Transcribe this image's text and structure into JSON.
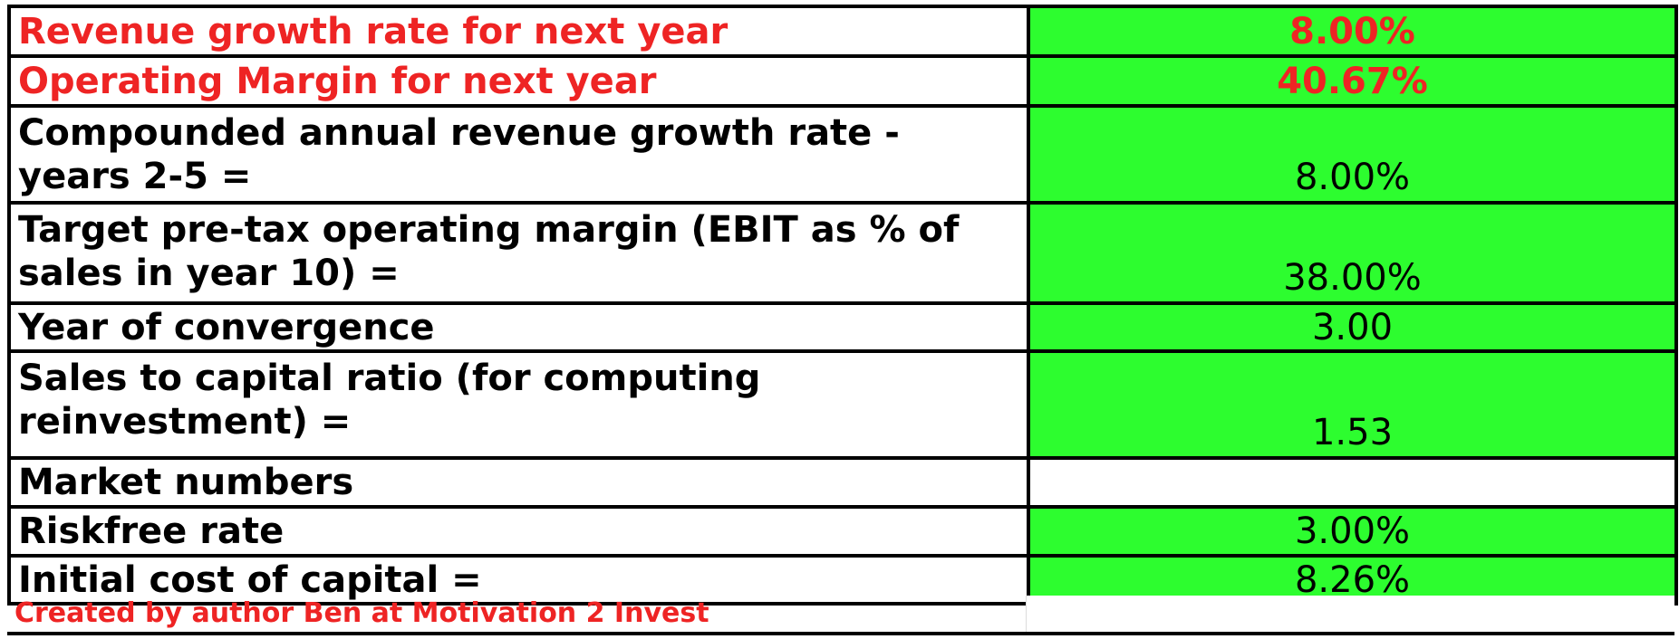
{
  "rows": [
    {
      "label": "Revenue growth rate for next year",
      "value": "8.00%"
    },
    {
      "label": "Operating Margin for next year",
      "value": "40.67%"
    },
    {
      "label": "Compounded annual revenue growth rate - years 2-5 =",
      "value": "8.00%"
    },
    {
      "label": "Target pre-tax operating margin (EBIT as % of sales in year 10) =",
      "value": "38.00%"
    },
    {
      "label": "Year of convergence",
      "value": "3.00"
    },
    {
      "label": "Sales to capital ratio  (for computing reinvestment) =",
      "value": "1.53"
    },
    {
      "label": "Market numbers",
      "value": ""
    },
    {
      "label": "Riskfree rate",
      "value": "3.00%"
    },
    {
      "label": "Initial cost of capital =",
      "value": "8.26%"
    }
  ],
  "footer": {
    "credit": "Created by author Ben at Motivation 2 Invest"
  },
  "colors": {
    "input_cell": "#2dfd2f",
    "highlight_text": "#ee2424",
    "grid_line": "#000000"
  }
}
